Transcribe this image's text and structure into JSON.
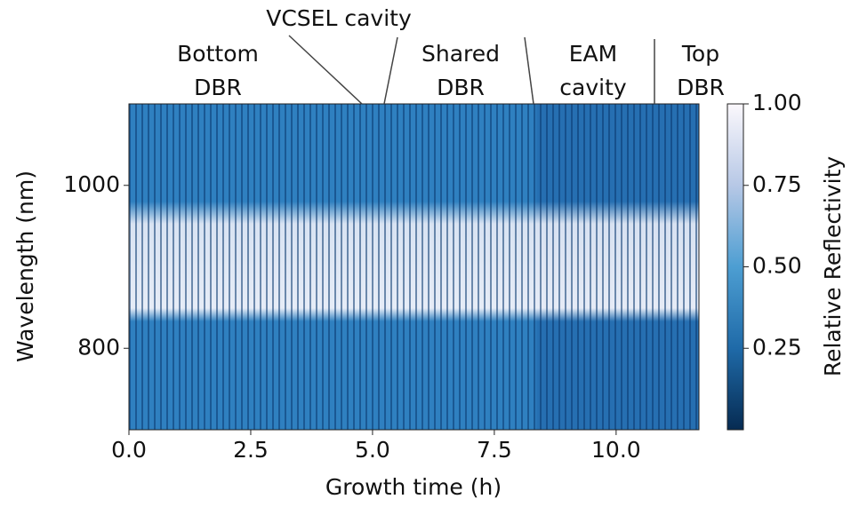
{
  "chart_data": {
    "type": "heatmap",
    "xlabel": "Growth time (h)",
    "ylabel": "Wavelength (nm)",
    "colorbar_label": "Relative Reflectivity",
    "xlim": [
      0,
      11.7
    ],
    "xticks": [
      {
        "value": 0,
        "label": "0.0"
      },
      2.5,
      {
        "value": 5,
        "label": "5.0"
      },
      7.5,
      {
        "value": 10,
        "label": "10.0"
      }
    ],
    "ylim": [
      700,
      1100
    ],
    "yticks": [
      800,
      1000
    ],
    "clim": [
      0,
      1
    ],
    "cticks": [
      0.25,
      {
        "value": 0.5,
        "label": "0.50"
      },
      0.75,
      {
        "value": 1,
        "label": "1.00"
      }
    ],
    "annotations": [
      {
        "lines": [
          "Bottom",
          "DBR"
        ]
      },
      {
        "lines": [
          "VCSEL cavity"
        ]
      },
      {
        "lines": [
          "Shared",
          "DBR"
        ]
      },
      {
        "lines": [
          "EAM",
          "cavity"
        ]
      },
      {
        "lines": [
          "Top",
          "DBR"
        ]
      }
    ]
  }
}
